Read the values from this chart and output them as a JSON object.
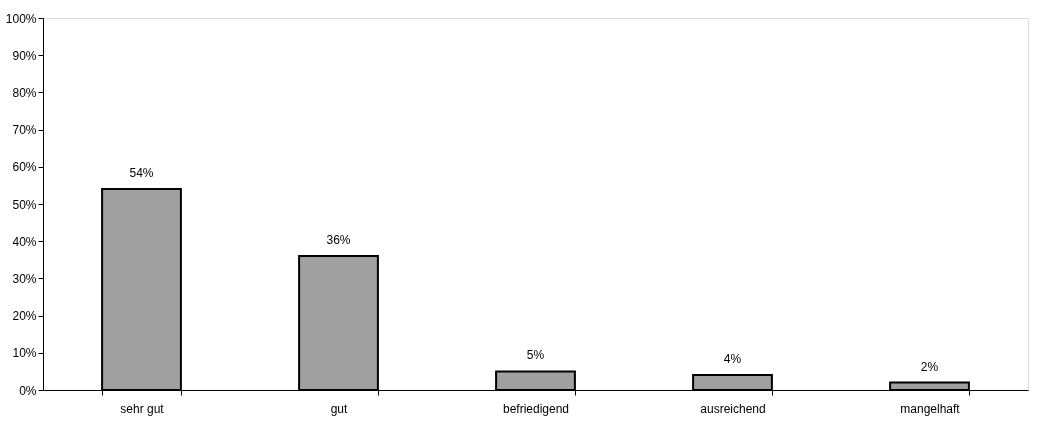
{
  "chart_data": {
    "type": "bar",
    "categories": [
      "sehr gut",
      "gut",
      "befriedigend",
      "ausreichend",
      "mangelhaft"
    ],
    "series": [
      {
        "color": "#a0a0a0",
        "values": [
          54,
          36,
          5,
          4,
          2
        ]
      }
    ],
    "value_labels": [
      "54%",
      "36%",
      "5%",
      "4%",
      "2%"
    ],
    "ylim": [
      0,
      100
    ],
    "yticks": [
      {
        "value": 0,
        "label": "0%"
      },
      {
        "value": 10,
        "label": "10%"
      },
      {
        "value": 20,
        "label": "20%"
      },
      {
        "value": 30,
        "label": "30%"
      },
      {
        "value": 40,
        "label": "40%"
      },
      {
        "value": 50,
        "label": "50%"
      },
      {
        "value": 60,
        "label": "60%"
      },
      {
        "value": 70,
        "label": "70%"
      },
      {
        "value": 80,
        "label": "80%"
      },
      {
        "value": 90,
        "label": "90%"
      },
      {
        "value": 100,
        "label": "100%"
      }
    ],
    "grid": false,
    "legend": false
  }
}
